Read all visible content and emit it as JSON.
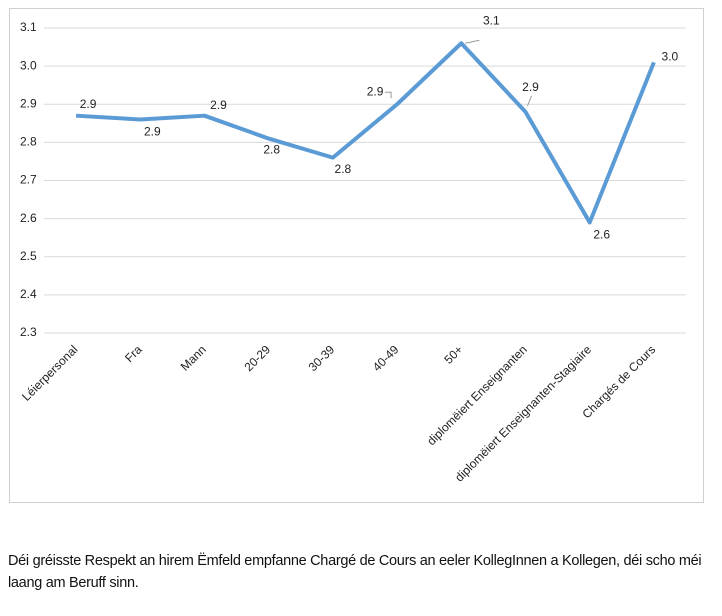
{
  "chart_data": {
    "type": "line",
    "categories": [
      "Léierpersonal",
      "Fra",
      "Mann",
      "20-29",
      "30-39",
      "40-49",
      "50+",
      "diplomëiert Enseignanten",
      "diplomëiert Enseignanten-Stagiaire",
      "Chargés de Cours"
    ],
    "values": [
      2.87,
      2.86,
      2.87,
      2.81,
      2.76,
      2.9,
      3.06,
      2.88,
      2.59,
      3.01
    ],
    "value_labels": [
      "2.9",
      "2.9",
      "2.9",
      "2.8",
      "2.8",
      "2.9",
      "3.1",
      "2.9",
      "2.6",
      "3.0"
    ],
    "color": "#5b9bd5",
    "ylim": [
      2.3,
      3.1
    ],
    "yticks": [
      2.3,
      2.4,
      2.5,
      2.6,
      2.7,
      2.8,
      2.9,
      {
        "value": 3,
        "label": "3.0"
      },
      3.1
    ],
    "grid": true
  },
  "caption": "Déi gréisste Respekt an hirem Ëmfeld empfanne Chargé de Cours an eeler KollegInnen a Kollegen, déi scho méi laang am Beruff sinn."
}
